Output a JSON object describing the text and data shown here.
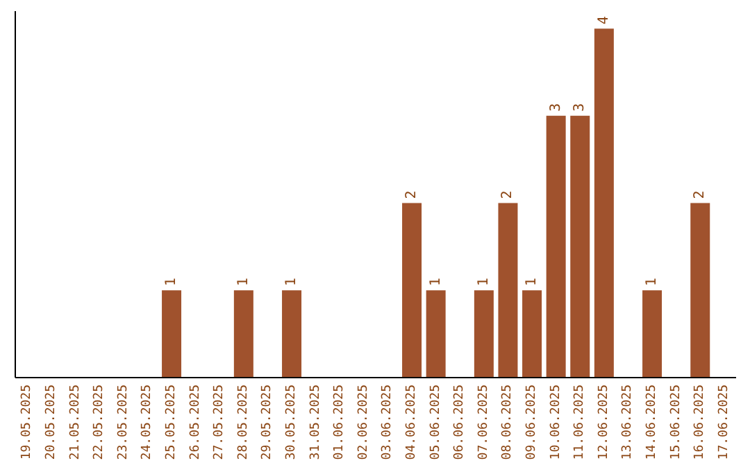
{
  "chart_data": {
    "type": "bar",
    "categories": [
      "19.05.2025",
      "20.05.2025",
      "21.05.2025",
      "22.05.2025",
      "23.05.2025",
      "24.05.2025",
      "25.05.2025",
      "26.05.2025",
      "27.05.2025",
      "28.05.2025",
      "29.05.2025",
      "30.05.2025",
      "31.05.2025",
      "01.06.2025",
      "02.06.2025",
      "03.06.2025",
      "04.06.2025",
      "05.06.2025",
      "06.06.2025",
      "07.06.2025",
      "08.06.2025",
      "09.06.2025",
      "10.06.2025",
      "11.06.2025",
      "12.06.2025",
      "13.06.2025",
      "14.06.2025",
      "15.06.2025",
      "16.06.2025",
      "17.06.2025"
    ],
    "values": [
      0,
      0,
      0,
      0,
      0,
      0,
      1,
      0,
      0,
      1,
      0,
      1,
      0,
      0,
      0,
      0,
      2,
      1,
      0,
      1,
      2,
      1,
      3,
      3,
      4,
      0,
      1,
      0,
      2,
      0
    ],
    "value_labels": [
      null,
      null,
      null,
      null,
      null,
      null,
      "1",
      null,
      null,
      "1",
      null,
      "1",
      null,
      null,
      null,
      null,
      "2",
      "1",
      null,
      "1",
      "2",
      "1",
      "3",
      "3",
      "4",
      null,
      "1",
      null,
      "2",
      null
    ],
    "color": "#a0522d",
    "ylim": [
      0,
      4.2
    ],
    "tick_labels": "x",
    "grid": false
  }
}
